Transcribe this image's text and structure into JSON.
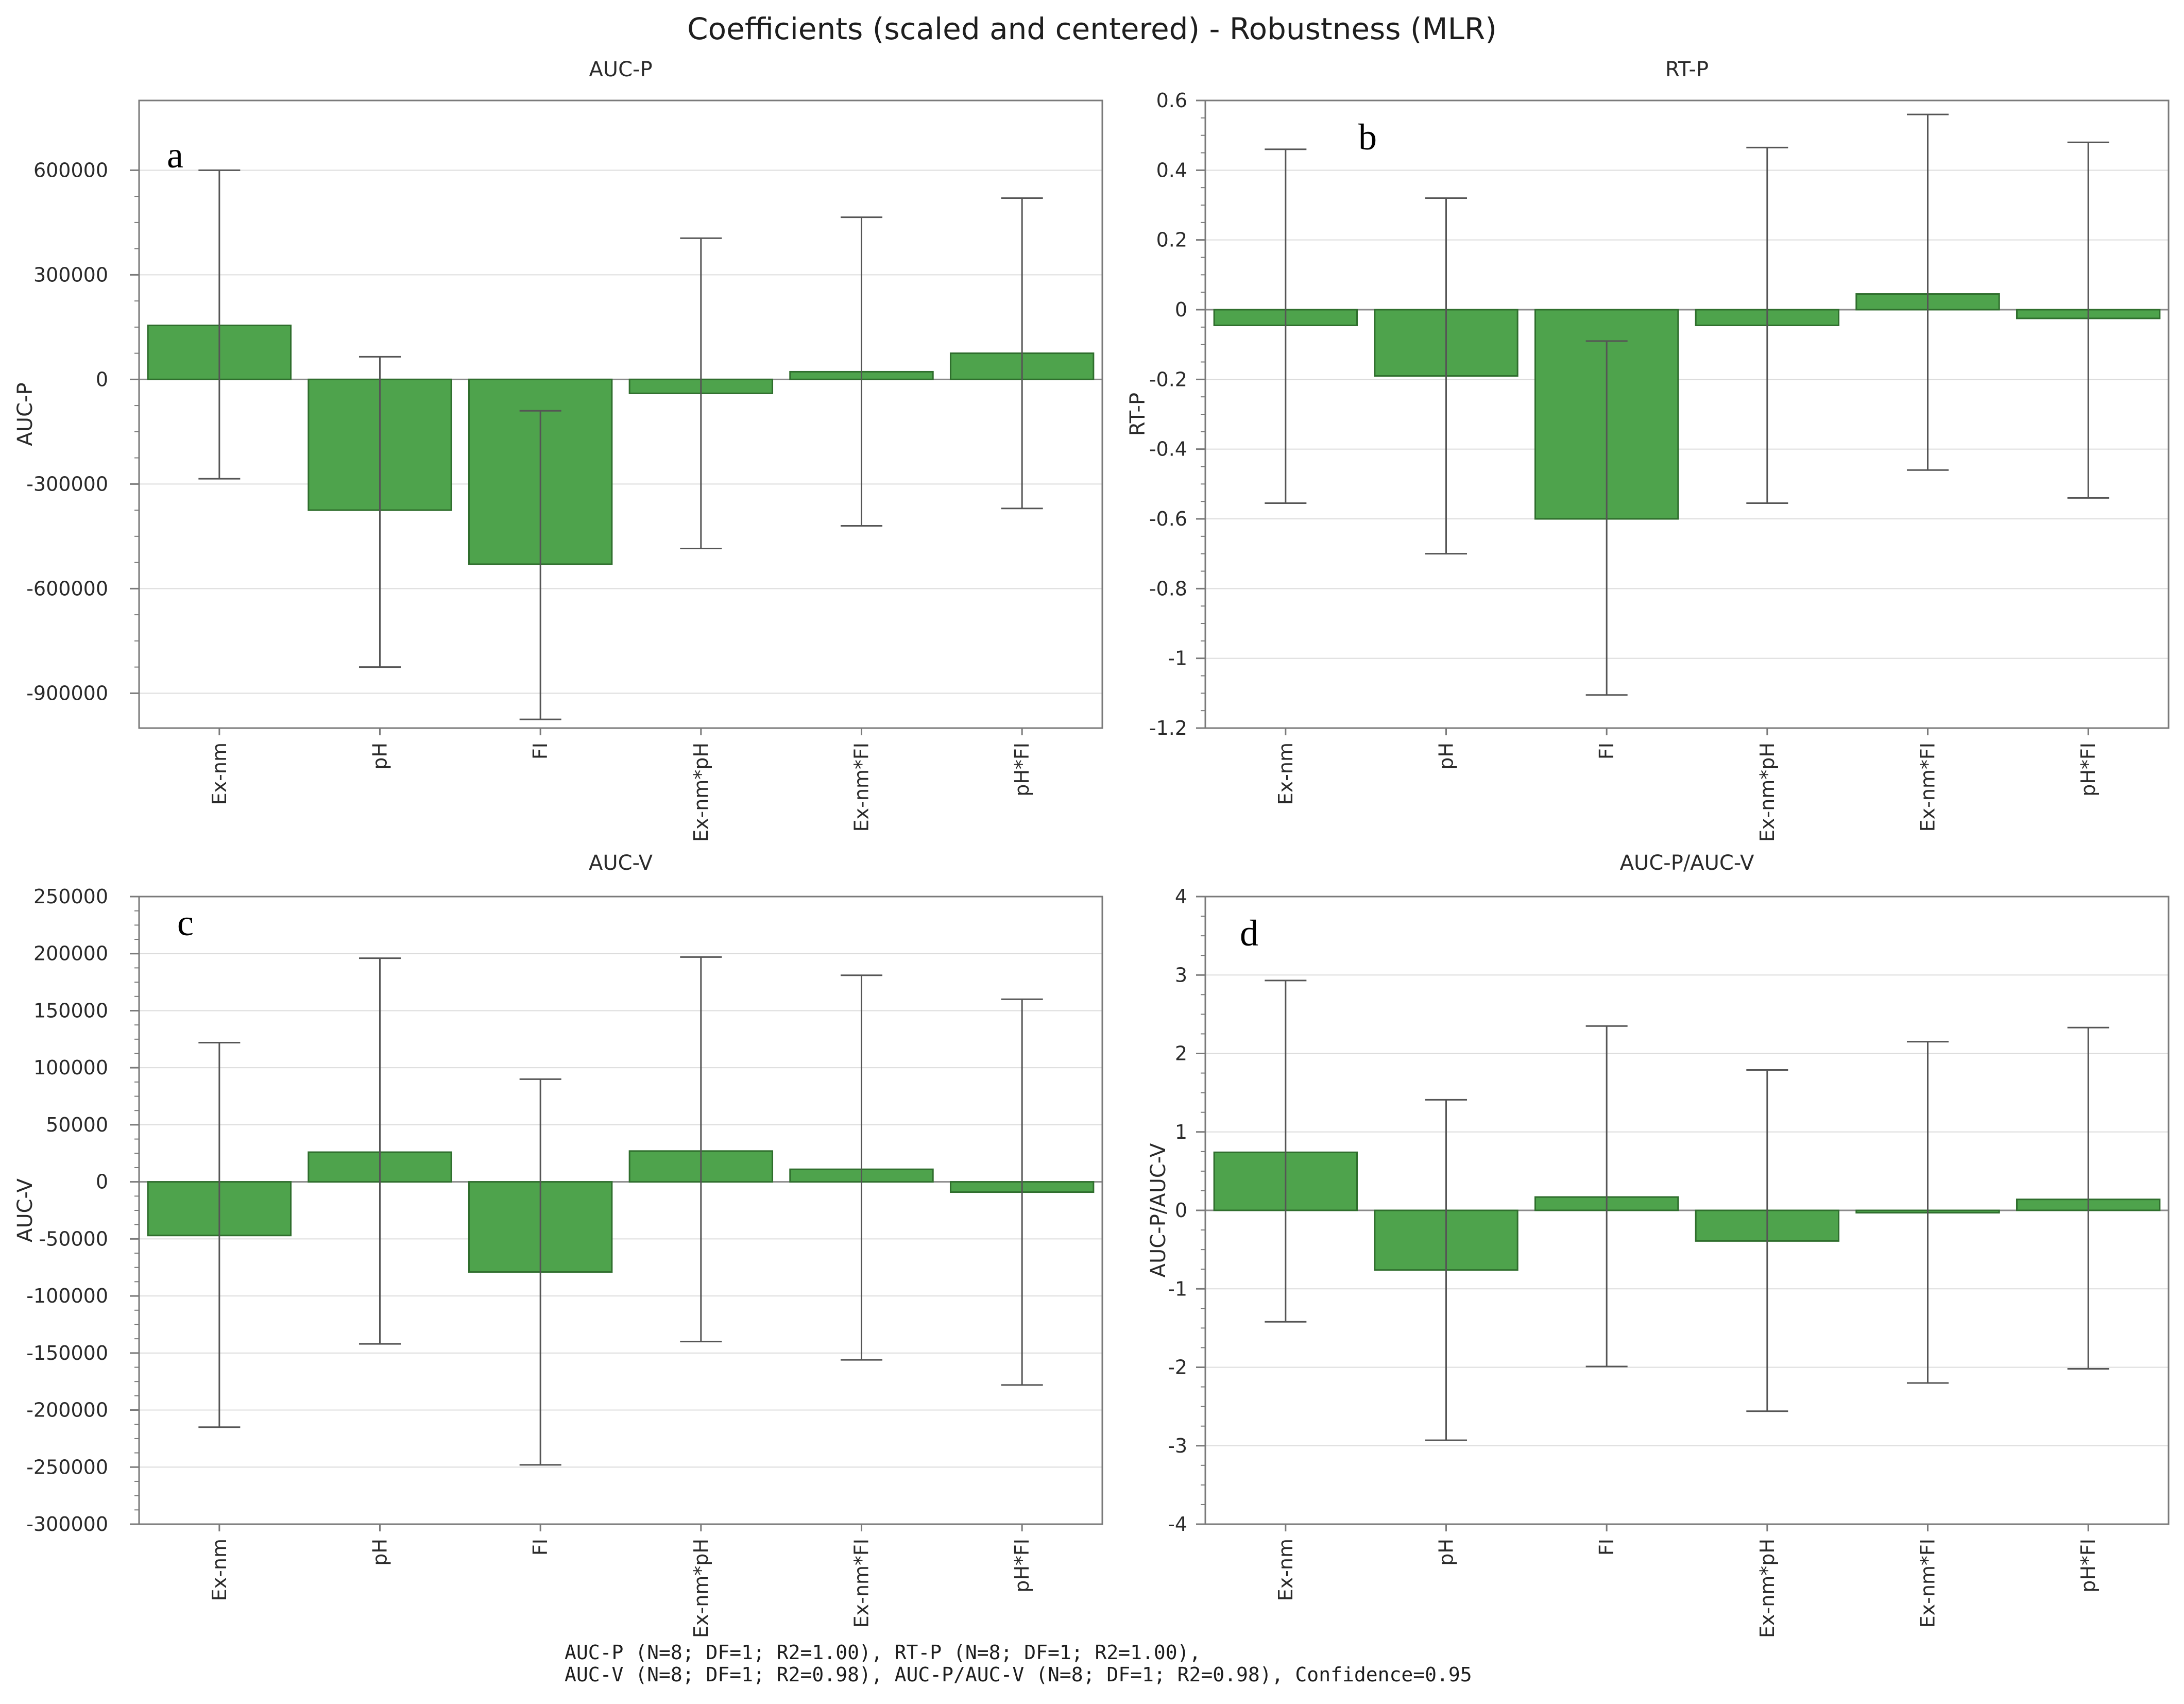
{
  "title": "Coefficients (scaled and centered) - Robustness (MLR)",
  "footer": {
    "line1": "AUC-P (N=8; DF=1; R2=1.00), RT-P (N=8; DF=1; R2=1.00),",
    "line2": "AUC-V (N=8; DF=1; R2=0.98), AUC-P/AUC-V (N=8; DF=1; R2=0.98), Confidence=0.95"
  },
  "colors": {
    "bar_fill": "#4ea34c",
    "bar_stroke": "#2f6e2d",
    "error_bar": "#555555",
    "grid": "#dcdcdc",
    "axis": "#7a7a7a"
  },
  "chart_data": [
    {
      "type": "bar",
      "panel": "a",
      "title": "AUC-P",
      "ylabel": "AUC-P",
      "ylim": [
        -1000000,
        800000
      ],
      "yticks": [
        -900000,
        -600000,
        -300000,
        0,
        300000,
        600000
      ],
      "ytick_labels": [
        "-900000",
        "-600000",
        "-300000",
        "0",
        "300000",
        "600000"
      ],
      "grid": true,
      "categories": [
        "Ex-nm",
        "pH",
        "FI",
        "Ex-nm*pH",
        "Ex-nm*FI",
        "pH*FI"
      ],
      "values": [
        155000,
        -375000,
        -530000,
        -40000,
        22000,
        75000
      ],
      "error_low": [
        -285000,
        -825000,
        -975000,
        -485000,
        -420000,
        -370000
      ],
      "error_high": [
        600000,
        65000,
        -90000,
        405000,
        465000,
        520000
      ]
    },
    {
      "type": "bar",
      "panel": "b",
      "title": "RT-P",
      "ylabel": "RT-P",
      "ylim": [
        -1.2,
        0.6
      ],
      "yticks": [
        -1.2,
        -1,
        -0.8,
        -0.6,
        -0.4,
        -0.2,
        0,
        0.2,
        0.4,
        0.6
      ],
      "ytick_labels": [
        "-1.2",
        "-1",
        "-0.8",
        "-0.6",
        "-0.4",
        "-0.2",
        "0",
        "0.2",
        "0.4",
        "0.6"
      ],
      "grid": true,
      "categories": [
        "Ex-nm",
        "pH",
        "FI",
        "Ex-nm*pH",
        "Ex-nm*FI",
        "pH*FI"
      ],
      "values": [
        -0.045,
        -0.19,
        -0.6,
        -0.045,
        0.045,
        -0.025
      ],
      "error_low": [
        -0.555,
        -0.7,
        -1.105,
        -0.555,
        -0.46,
        -0.54
      ],
      "error_high": [
        0.46,
        0.32,
        -0.09,
        0.465,
        0.56,
        0.48
      ]
    },
    {
      "type": "bar",
      "panel": "c",
      "title": "AUC-V",
      "ylabel": "AUC-V",
      "ylim": [
        -300000,
        250000
      ],
      "yticks": [
        -300000,
        -250000,
        -200000,
        -150000,
        -100000,
        -50000,
        0,
        50000,
        100000,
        150000,
        200000,
        250000
      ],
      "ytick_labels": [
        "-300000",
        "-250000",
        "-200000",
        "-150000",
        "-100000",
        "-50000",
        "0",
        "50000",
        "100000",
        "150000",
        "200000",
        "250000"
      ],
      "grid": true,
      "categories": [
        "Ex-nm",
        "pH",
        "FI",
        "Ex-nm*pH",
        "Ex-nm*FI",
        "pH*FI"
      ],
      "values": [
        -47000,
        26000,
        -79000,
        27000,
        11000,
        -9000
      ],
      "error_low": [
        -215000,
        -142000,
        -248000,
        -140000,
        -156000,
        -178000
      ],
      "error_high": [
        122000,
        196000,
        90000,
        197000,
        181000,
        160000
      ]
    },
    {
      "type": "bar",
      "panel": "d",
      "title": "AUC-P/AUC-V",
      "ylabel": "AUC-P/AUC-V",
      "ylim": [
        -4,
        4
      ],
      "yticks": [
        -4,
        -3,
        -2,
        -1,
        0,
        1,
        2,
        3,
        4
      ],
      "ytick_labels": [
        "-4",
        "-3",
        "-2",
        "-1",
        "0",
        "1",
        "2",
        "3",
        "4"
      ],
      "grid": true,
      "categories": [
        "Ex-nm",
        "pH",
        "FI",
        "Ex-nm*pH",
        "Ex-nm*FI",
        "pH*FI"
      ],
      "values": [
        0.74,
        -0.76,
        0.17,
        -0.39,
        -0.03,
        0.14
      ],
      "error_low": [
        -1.42,
        -2.93,
        -1.99,
        -2.56,
        -2.2,
        -2.02
      ],
      "error_high": [
        2.93,
        1.41,
        2.35,
        1.79,
        2.15,
        2.33
      ]
    }
  ]
}
